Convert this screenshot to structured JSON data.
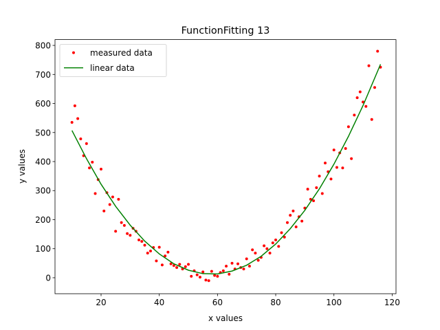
{
  "chart_data": {
    "type": "scatter",
    "title": "FunctionFitting 13",
    "x_label": "x values",
    "y_label": "y values",
    "xlim": [
      4.175,
      121.325
    ],
    "ylim": [
      -55,
      820
    ],
    "xticks": [
      20,
      40,
      60,
      80,
      100,
      120
    ],
    "yticks": [
      0,
      100,
      200,
      300,
      400,
      500,
      600,
      700,
      800
    ],
    "legend": "upper left",
    "series": [
      {
        "name": "measured data",
        "type": "scatter",
        "color": "#ff0000",
        "x": [
          10,
          11,
          12,
          13,
          14,
          15,
          16,
          17,
          18,
          19,
          20,
          21,
          22,
          23,
          24,
          25,
          26,
          27,
          28,
          29,
          30,
          31,
          32,
          33,
          34,
          35,
          36,
          37,
          38,
          39,
          40,
          41,
          42,
          43,
          44,
          45,
          46,
          47,
          48,
          49,
          50,
          51,
          52,
          53,
          54,
          55,
          56,
          57,
          58,
          59,
          60,
          61,
          62,
          63,
          64,
          65,
          66,
          67,
          68,
          69,
          70,
          71,
          72,
          73,
          74,
          75,
          76,
          77,
          78,
          79,
          80,
          81,
          82,
          83,
          84,
          85,
          86,
          87,
          88,
          89,
          90,
          91,
          92,
          93,
          94,
          95,
          96,
          97,
          98,
          99,
          100,
          101,
          102,
          103,
          104,
          105,
          106,
          107,
          108,
          109,
          110,
          111,
          112,
          113,
          114,
          115,
          116
        ],
        "values": [
          535,
          592,
          548,
          478,
          420,
          462,
          378,
          398,
          290,
          338,
          374,
          230,
          293,
          252,
          278,
          160,
          270,
          190,
          180,
          152,
          146,
          170,
          160,
          130,
          125,
          112,
          85,
          92,
          104,
          58,
          105,
          44,
          75,
          88,
          48,
          42,
          35,
          46,
          30,
          38,
          46,
          5,
          24,
          10,
          2,
          20,
          -8,
          -10,
          22,
          8,
          5,
          18,
          24,
          40,
          12,
          50,
          30,
          48,
          35,
          30,
          65,
          40,
          96,
          85,
          60,
          70,
          110,
          100,
          85,
          120,
          130,
          108,
          155,
          140,
          190,
          215,
          230,
          175,
          210,
          195,
          240,
          305,
          270,
          265,
          310,
          350,
          290,
          395,
          365,
          340,
          440,
          380,
          430,
          378,
          445,
          520,
          410,
          560,
          620,
          640,
          605,
          590,
          730,
          545,
          655,
          780,
          725
        ]
      },
      {
        "name": "linear data",
        "type": "line",
        "color": "#008000",
        "x": [
          10,
          15,
          20,
          25,
          30,
          35,
          40,
          45,
          50,
          55,
          60,
          65,
          70,
          75,
          80,
          85,
          90,
          95,
          100,
          105,
          110,
          115,
          116
        ],
        "values": [
          507,
          410,
          322,
          246,
          181,
          126,
          82,
          48,
          26,
          14,
          13,
          23,
          43,
          74,
          116,
          169,
          232,
          306,
          391,
          487,
          593,
          711,
          735
        ]
      }
    ]
  }
}
